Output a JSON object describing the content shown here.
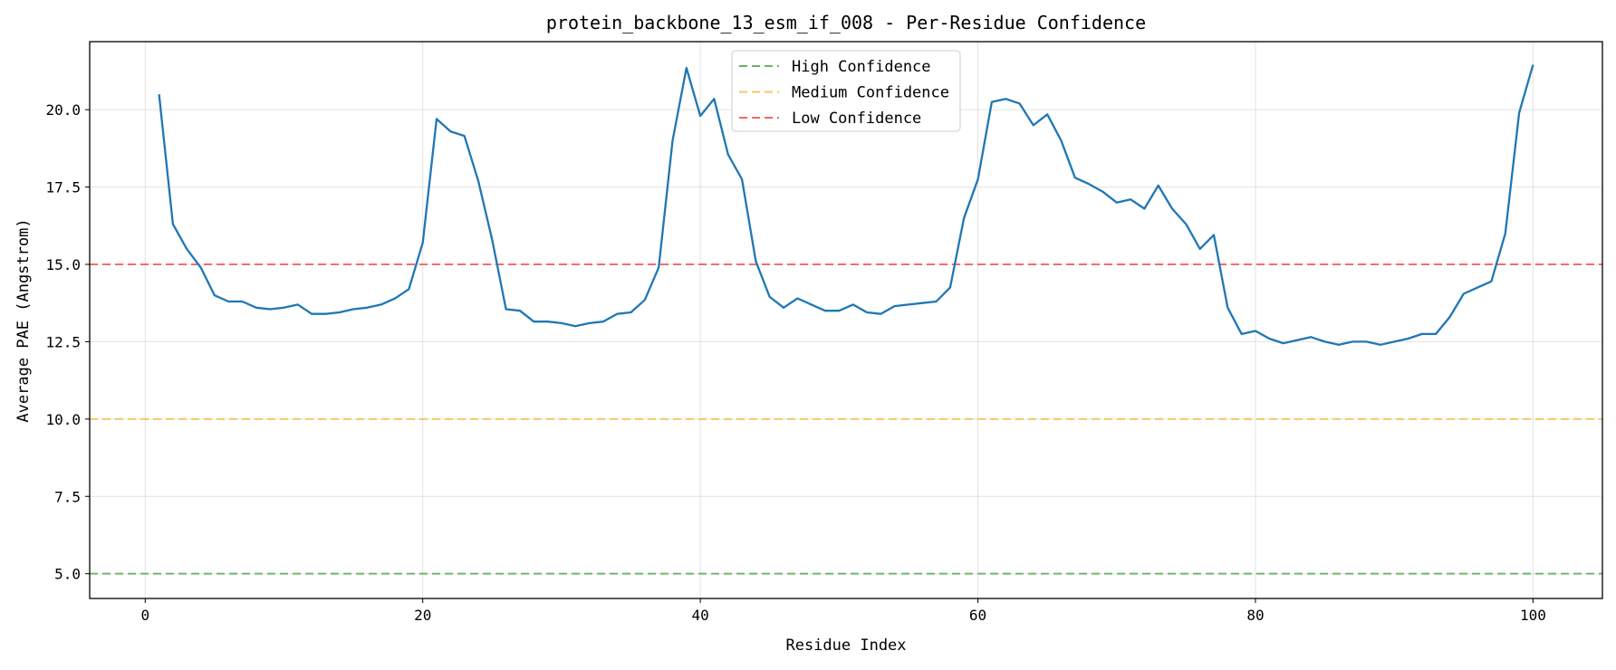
{
  "chart_data": {
    "type": "line",
    "title": "protein_backbone_13_esm_if_008 - Per-Residue Confidence",
    "xlabel": "Residue Index",
    "ylabel": "Average PAE (Angstrom)",
    "xlim": [
      -4,
      105
    ],
    "ylim": [
      4.2,
      22.2
    ],
    "xticks": [
      0,
      20,
      40,
      60,
      80,
      100
    ],
    "yticks": [
      5.0,
      7.5,
      10.0,
      12.5,
      15.0,
      17.5,
      20.0
    ],
    "x_tick_labels": [
      "0",
      "20",
      "40",
      "60",
      "80",
      "100"
    ],
    "y_tick_labels": [
      "5.0",
      "7.5",
      "10.0",
      "12.5",
      "15.0",
      "17.5",
      "20.0"
    ],
    "grid": true,
    "legend_position": "top-center",
    "series": [
      {
        "color": "#1f77b4",
        "x": [
          1,
          2,
          3,
          4,
          5,
          6,
          7,
          8,
          9,
          10,
          11,
          12,
          13,
          14,
          15,
          16,
          17,
          18,
          19,
          20,
          21,
          22,
          23,
          24,
          25,
          26,
          27,
          28,
          29,
          30,
          31,
          32,
          33,
          34,
          35,
          36,
          37,
          38,
          39,
          40,
          41,
          42,
          43,
          44,
          45,
          46,
          47,
          48,
          49,
          50,
          51,
          52,
          53,
          54,
          55,
          56,
          57,
          58,
          59,
          60,
          61,
          62,
          63,
          64,
          65,
          66,
          67,
          68,
          69,
          70,
          71,
          72,
          73,
          74,
          75,
          76,
          77,
          78,
          79,
          80,
          81,
          82,
          83,
          84,
          85,
          86,
          87,
          88,
          89,
          90,
          91,
          92,
          93,
          94,
          95,
          96,
          97,
          98,
          99,
          100
        ],
        "y": [
          20.5,
          16.3,
          15.5,
          14.9,
          14.0,
          13.8,
          13.8,
          13.6,
          13.55,
          13.6,
          13.7,
          13.4,
          13.4,
          13.45,
          13.55,
          13.6,
          13.7,
          13.9,
          14.2,
          15.7,
          19.7,
          19.3,
          19.15,
          17.7,
          15.8,
          13.55,
          13.5,
          13.15,
          13.15,
          13.1,
          13.0,
          13.1,
          13.15,
          13.4,
          13.45,
          13.85,
          14.9,
          19.0,
          21.35,
          19.8,
          20.35,
          18.55,
          17.75,
          15.1,
          13.95,
          13.6,
          13.9,
          13.7,
          13.5,
          13.5,
          13.7,
          13.45,
          13.4,
          13.65,
          13.7,
          13.75,
          13.8,
          14.25,
          16.5,
          17.75,
          20.25,
          20.35,
          20.2,
          19.5,
          19.85,
          19.0,
          17.8,
          17.6,
          17.35,
          17.0,
          17.1,
          16.8,
          17.55,
          16.8,
          16.3,
          15.5,
          15.95,
          13.6,
          12.75,
          12.85,
          12.6,
          12.45,
          12.55,
          12.65,
          12.5,
          12.4,
          12.5,
          12.5,
          12.4,
          12.5,
          12.6,
          12.75,
          12.75,
          13.3,
          14.05,
          14.25,
          14.45,
          16.0,
          19.9,
          21.45
        ]
      }
    ],
    "reference_lines": [
      {
        "name": "High Confidence",
        "y": 5.0,
        "color": "#6ab26a"
      },
      {
        "name": "Medium Confidence",
        "y": 10.0,
        "color": "#f9c45f"
      },
      {
        "name": "Low Confidence",
        "y": 15.0,
        "color": "#f26666"
      }
    ]
  }
}
